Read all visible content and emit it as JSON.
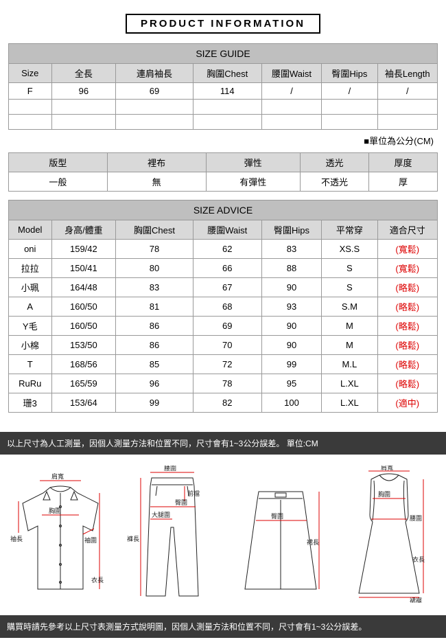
{
  "page_title": "PRODUCT INFORMATION",
  "size_guide": {
    "header": "SIZE GUIDE",
    "columns": [
      "Size",
      "全長",
      "連肩袖長",
      "胸圍Chest",
      "腰圍Waist",
      "臀圍Hips",
      "袖長Length"
    ],
    "rows": [
      [
        "F",
        "96",
        "69",
        "114",
        "/",
        "/",
        "/"
      ],
      [
        "",
        "",
        "",
        "",
        "",
        "",
        ""
      ],
      [
        "",
        "",
        "",
        "",
        "",
        "",
        ""
      ]
    ],
    "unit_note": "■單位為公分(CM)"
  },
  "attributes": {
    "headers": [
      "版型",
      "裡布",
      "彈性",
      "透光",
      "厚度"
    ],
    "values": [
      "一般",
      "無",
      "有彈性",
      "不透光",
      "厚"
    ]
  },
  "size_advice": {
    "header": "SIZE ADVICE",
    "columns": [
      "Model",
      "身高/體重",
      "胸圍Chest",
      "腰圍Waist",
      "臀圍Hips",
      "平常穿",
      "適合尺寸"
    ],
    "rows": [
      {
        "cells": [
          "oni",
          "159/42",
          "78",
          "62",
          "83",
          "XS.S"
        ],
        "fit": "(寬鬆)"
      },
      {
        "cells": [
          "拉拉",
          "150/41",
          "80",
          "66",
          "88",
          "S"
        ],
        "fit": "(寬鬆)"
      },
      {
        "cells": [
          "小珮",
          "164/48",
          "83",
          "67",
          "90",
          "S"
        ],
        "fit": "(略鬆)"
      },
      {
        "cells": [
          "A",
          "160/50",
          "81",
          "68",
          "93",
          "S.M"
        ],
        "fit": "(略鬆)"
      },
      {
        "cells": [
          "Y毛",
          "160/50",
          "86",
          "69",
          "90",
          "M"
        ],
        "fit": "(略鬆)"
      },
      {
        "cells": [
          "小棉",
          "153/50",
          "86",
          "70",
          "90",
          "M"
        ],
        "fit": "(略鬆)"
      },
      {
        "cells": [
          "T",
          "168/56",
          "85",
          "72",
          "99",
          "M.L"
        ],
        "fit": "(略鬆)"
      },
      {
        "cells": [
          "RuRu",
          "165/59",
          "96",
          "78",
          "95",
          "L.XL"
        ],
        "fit": "(略鬆)"
      },
      {
        "cells": [
          "珊3",
          "153/64",
          "99",
          "82",
          "100",
          "L.XL"
        ],
        "fit": "(適中)"
      }
    ]
  },
  "notes": {
    "top": "以上尺寸為人工測量，因個人測量方法和位置不同，尺寸會有1~3公分誤差。  單位:CM",
    "bottom": "購買時請先參考以上尺寸表測量方式說明圖，因個人測量方法和位置不同，尺寸會有1~3公分誤差。"
  },
  "diagram_labels": {
    "shirt": {
      "shoulder": "肩寬",
      "chest": "胸圍",
      "sleeve": "袖長",
      "cuff": "袖圍",
      "length": "衣長"
    },
    "pants": {
      "waist": "腰圍",
      "frontRise": "前檔",
      "hip": "臀圍",
      "thigh": "大腿圍",
      "length": "褲長"
    },
    "skirt": {
      "hip": "臀圍",
      "length": "裙長"
    },
    "dress": {
      "shoulder": "肩寬",
      "chest": "胸圍",
      "waist": "腰圍",
      "length": "衣長",
      "hem": "裙襬"
    }
  },
  "colors": {
    "border": "#999999",
    "header_bg": "#bfbfbf",
    "subheader_bg": "#d9d9d9",
    "red": "#dd0000",
    "dark_bar": "#3a3a3a",
    "text": "#000000"
  },
  "col_widths": {
    "size_guide": [
      "10%",
      "15%",
      "18%",
      "16%",
      "14%",
      "13%",
      "14%"
    ],
    "attrs": [
      "23%",
      "23%",
      "22%",
      "16%",
      "16%"
    ],
    "advice": [
      "10%",
      "15%",
      "18%",
      "16%",
      "14%",
      "13%",
      "14%"
    ]
  }
}
